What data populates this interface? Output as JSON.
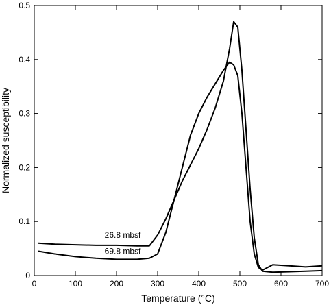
{
  "chart_data": {
    "type": "line",
    "title": "",
    "xlabel": "Temperature (°C)",
    "ylabel": "Normalized susceptibility",
    "xlim": [
      0,
      700
    ],
    "ylim": [
      0,
      0.5
    ],
    "xticks": [
      0,
      100,
      200,
      300,
      400,
      500,
      600,
      700
    ],
    "yticks": [
      0,
      0.1,
      0.2,
      0.3,
      0.4,
      0.5
    ],
    "grid": false,
    "legend": "none",
    "line_color": "#000000",
    "series": [
      {
        "label": "26.8 mbsf",
        "x": [
          10,
          50,
          100,
          150,
          200,
          250,
          280,
          300,
          320,
          340,
          360,
          380,
          400,
          420,
          440,
          460,
          475,
          485,
          495,
          505,
          515,
          525,
          535,
          545,
          555,
          580,
          620,
          660,
          700
        ],
        "y": [
          0.06,
          0.058,
          0.057,
          0.056,
          0.056,
          0.055,
          0.055,
          0.075,
          0.105,
          0.14,
          0.175,
          0.205,
          0.235,
          0.27,
          0.31,
          0.36,
          0.42,
          0.47,
          0.46,
          0.38,
          0.27,
          0.16,
          0.07,
          0.02,
          0.008,
          0.006,
          0.007,
          0.008,
          0.009
        ]
      },
      {
        "label": "69.8 mbsf",
        "x": [
          10,
          50,
          100,
          150,
          200,
          250,
          280,
          300,
          320,
          340,
          360,
          380,
          400,
          420,
          440,
          460,
          475,
          485,
          495,
          505,
          515,
          525,
          535,
          545,
          555,
          580,
          620,
          660,
          700
        ],
        "y": [
          0.045,
          0.04,
          0.035,
          0.032,
          0.03,
          0.03,
          0.032,
          0.04,
          0.08,
          0.14,
          0.2,
          0.26,
          0.3,
          0.33,
          0.355,
          0.38,
          0.395,
          0.39,
          0.37,
          0.3,
          0.2,
          0.1,
          0.04,
          0.015,
          0.01,
          0.02,
          0.018,
          0.016,
          0.018
        ]
      }
    ],
    "annotations": [
      {
        "text": "26.8 mbsf",
        "x": 215,
        "y": 0.07
      },
      {
        "text": "69.8 mbsf",
        "x": 215,
        "y": 0.04
      }
    ]
  }
}
